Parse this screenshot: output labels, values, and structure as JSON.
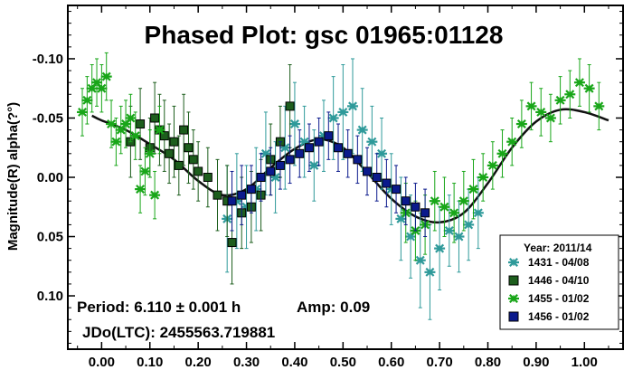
{
  "chart_data": {
    "type": "scatter",
    "title": "Phased Plot: gsc 01965:01128",
    "xlabel": "",
    "ylabel": "Magnitude(R) alpha(?°)",
    "xlim": [
      -0.07,
      1.08
    ],
    "ylim": [
      0.145,
      -0.145
    ],
    "x_ticks": [
      "0.00",
      "0.10",
      "0.20",
      "0.30",
      "0.40",
      "0.50",
      "0.60",
      "0.70",
      "0.80",
      "0.90",
      "1.00"
    ],
    "y_ticks": [
      "-0.10",
      "-0.05",
      "0.00",
      "0.05",
      "0.10"
    ],
    "grid": false,
    "legend_position": "bottom-right",
    "legend_title": "Year: 2011/14",
    "annotations": {
      "period": "Period: 6.110 ± 0.001 h",
      "amp": "Amp: 0.09",
      "epoch": "JDo(LTC): 2455563.719881"
    },
    "colors": {
      "series_1431": "#2f9a9a",
      "series_1446": "#1d5e1d",
      "series_1455": "#19a619",
      "series_1456": "#0b1a8c",
      "fit": "#111111"
    },
    "fit_curve": {
      "x": [
        -0.02,
        0.0,
        0.05,
        0.1,
        0.15,
        0.2,
        0.25,
        0.3,
        0.35,
        0.4,
        0.45,
        0.5,
        0.55,
        0.6,
        0.65,
        0.7,
        0.75,
        0.8,
        0.85,
        0.9,
        0.95,
        1.0,
        1.05
      ],
      "y": [
        -0.052,
        -0.048,
        -0.04,
        -0.028,
        -0.015,
        0.003,
        0.015,
        0.01,
        -0.008,
        -0.024,
        -0.032,
        -0.025,
        -0.004,
        0.018,
        0.033,
        0.038,
        0.03,
        0.005,
        -0.025,
        -0.047,
        -0.057,
        -0.055,
        -0.048
      ]
    },
    "series": [
      {
        "name": "1431 - 04/08",
        "marker": "asterisk",
        "x": [
          0.26,
          0.28,
          0.3,
          0.32,
          0.34,
          0.36,
          0.38,
          0.4,
          0.42,
          0.44,
          0.46,
          0.48,
          0.5,
          0.52,
          0.54,
          0.56,
          0.58,
          0.6,
          0.62,
          0.64,
          0.66,
          0.68,
          0.7,
          0.72,
          0.74,
          0.76,
          0.78
        ],
        "y": [
          0.035,
          0.02,
          0.025,
          0.01,
          -0.02,
          0.0,
          -0.025,
          -0.045,
          -0.03,
          -0.01,
          -0.035,
          -0.05,
          -0.055,
          -0.06,
          -0.04,
          -0.03,
          -0.02,
          0.01,
          0.035,
          0.05,
          0.07,
          0.08,
          0.06,
          0.045,
          0.05,
          0.04,
          0.03
        ],
        "err": [
          0.045,
          0.04,
          0.035,
          0.035,
          0.035,
          0.03,
          0.035,
          0.035,
          0.03,
          0.03,
          0.03,
          0.035,
          0.04,
          0.04,
          0.035,
          0.03,
          0.03,
          0.03,
          0.035,
          0.035,
          0.04,
          0.04,
          0.035,
          0.03,
          0.03,
          0.03,
          0.03
        ]
      },
      {
        "name": "1446 - 04/10",
        "marker": "square",
        "x": [
          0.06,
          0.08,
          0.1,
          0.11,
          0.12,
          0.13,
          0.14,
          0.15,
          0.16,
          0.17,
          0.18,
          0.19,
          0.2,
          0.22,
          0.24,
          0.26,
          0.27,
          0.29,
          0.31,
          0.33,
          0.35,
          0.37,
          0.39
        ],
        "y": [
          -0.03,
          -0.045,
          -0.025,
          -0.05,
          -0.04,
          -0.035,
          -0.02,
          -0.03,
          -0.01,
          -0.04,
          -0.025,
          -0.015,
          -0.005,
          0.0,
          0.015,
          0.02,
          0.055,
          0.03,
          0.025,
          0.015,
          -0.015,
          -0.03,
          -0.06
        ],
        "err": [
          0.03,
          0.03,
          0.025,
          0.03,
          0.03,
          0.03,
          0.025,
          0.03,
          0.025,
          0.03,
          0.03,
          0.025,
          0.025,
          0.025,
          0.03,
          0.03,
          0.035,
          0.03,
          0.03,
          0.03,
          0.03,
          0.03,
          0.035
        ]
      },
      {
        "name": "1455 - 01/02",
        "marker": "asterisk",
        "x": [
          -0.04,
          -0.03,
          -0.02,
          -0.01,
          0.0,
          0.01,
          0.02,
          0.03,
          0.04,
          0.05,
          0.06,
          0.07,
          0.08,
          0.09,
          0.1,
          0.11,
          0.12,
          0.63,
          0.65,
          0.67,
          0.69,
          0.71,
          0.73,
          0.75,
          0.77,
          0.79,
          0.81,
          0.83,
          0.85,
          0.87,
          0.89,
          0.91,
          0.93,
          0.95,
          0.97,
          0.99,
          1.01,
          1.03
        ],
        "y": [
          -0.055,
          -0.065,
          -0.075,
          -0.08,
          -0.075,
          -0.085,
          -0.045,
          -0.03,
          -0.04,
          -0.045,
          -0.05,
          -0.035,
          0.01,
          -0.005,
          -0.02,
          0.015,
          -0.04,
          0.03,
          0.045,
          0.04,
          0.02,
          0.025,
          0.03,
          0.02,
          0.01,
          0.0,
          -0.01,
          -0.02,
          -0.03,
          -0.045,
          -0.06,
          -0.055,
          -0.05,
          -0.065,
          -0.07,
          -0.08,
          -0.075,
          -0.06
        ],
        "err": [
          0.02,
          0.02,
          0.02,
          0.02,
          0.02,
          0.02,
          0.02,
          0.02,
          0.02,
          0.02,
          0.02,
          0.02,
          0.02,
          0.02,
          0.02,
          0.02,
          0.02,
          0.025,
          0.025,
          0.025,
          0.025,
          0.025,
          0.025,
          0.025,
          0.025,
          0.02,
          0.02,
          0.02,
          0.02,
          0.02,
          0.02,
          0.02,
          0.02,
          0.02,
          0.02,
          0.02,
          0.02,
          0.02
        ]
      },
      {
        "name": "1456 - 01/02",
        "marker": "square",
        "x": [
          0.27,
          0.29,
          0.31,
          0.33,
          0.35,
          0.37,
          0.39,
          0.41,
          0.43,
          0.45,
          0.47,
          0.49,
          0.51,
          0.53,
          0.55,
          0.57,
          0.59,
          0.61,
          0.63,
          0.65,
          0.67
        ],
        "y": [
          0.02,
          0.015,
          0.01,
          0.0,
          -0.005,
          -0.01,
          -0.015,
          -0.02,
          -0.025,
          -0.03,
          -0.035,
          -0.025,
          -0.02,
          -0.015,
          -0.005,
          0.0,
          0.005,
          0.01,
          0.02,
          0.025,
          0.03
        ],
        "err": [
          0.025,
          0.025,
          0.02,
          0.02,
          0.02,
          0.02,
          0.02,
          0.02,
          0.02,
          0.02,
          0.02,
          0.02,
          0.02,
          0.02,
          0.02,
          0.02,
          0.02,
          0.02,
          0.02,
          0.02,
          0.02
        ]
      }
    ]
  }
}
